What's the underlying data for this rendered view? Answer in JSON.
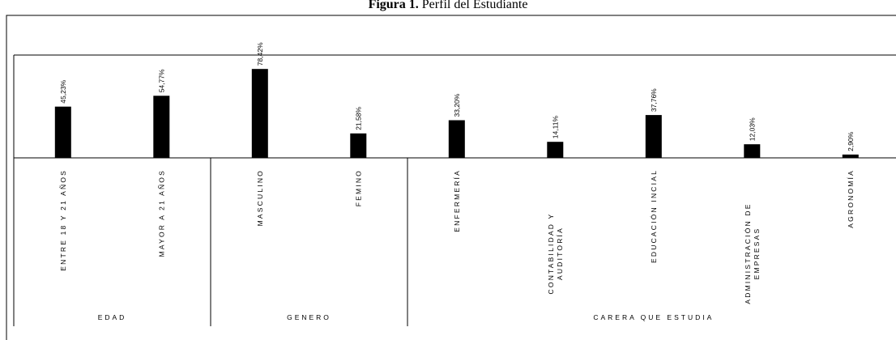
{
  "figure": {
    "title_bold": "Figura 1.",
    "title_rest": " Perfil del Estudiante"
  },
  "chart_data": {
    "type": "bar",
    "unit": "%",
    "categories": [
      [
        "ENTRE 18 Y 21 AÑOS"
      ],
      [
        "MAYOR A 21 AÑOS"
      ],
      [
        "MASCULINO"
      ],
      [
        "FEMINO"
      ],
      [
        "ENFERMERÍA"
      ],
      [
        "CONTABILIDAD Y",
        "AUDITORÍA"
      ],
      [
        "EDUCACIÓN INCIAL"
      ],
      [
        "ADMINISTRACIÓN DE",
        "EMPRESAS"
      ],
      [
        "AGRONOMÍA"
      ]
    ],
    "values": [
      45.23,
      54.77,
      78.42,
      21.58,
      33.2,
      14.11,
      37.76,
      12.03,
      2.9
    ],
    "value_labels": [
      "45,23%",
      "54,77%",
      "78,42%",
      "21,58%",
      "33,20%",
      "14,11%",
      "37,76%",
      "12,03%",
      "2,90%"
    ],
    "groups": [
      {
        "label": "EDAD",
        "count": 2
      },
      {
        "label": "GENERO",
        "count": 2
      },
      {
        "label": "CARERA QUE ESTUDIA",
        "count": 5
      }
    ],
    "ylim": [
      0,
      100
    ],
    "bar_color": "#000000",
    "legend": "none",
    "grid": false
  }
}
